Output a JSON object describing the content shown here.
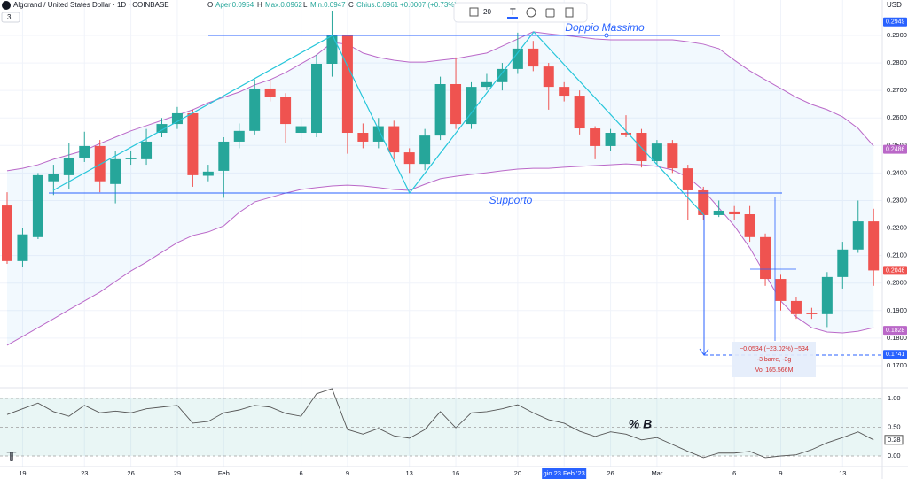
{
  "header": {
    "symbol": "Algorand / United States Dollar · 1D · COINBASE",
    "o": "O",
    "open": "Aper.0.0954",
    "h": "H",
    "high": "Max.0.0962",
    "l": "L",
    "low": "Min.0.0947",
    "c": "C",
    "close": "Chius.0.0961",
    "change": "+0.0007 (+0.73%)",
    "indicators": "3",
    "font_size": "20",
    "currency": "USD"
  },
  "chart_data": [
    {
      "type": "candlestick",
      "categories": [
        null,
        "19",
        null,
        null,
        null,
        "23",
        null,
        null,
        "26",
        null,
        null,
        "29",
        null,
        null,
        "Feb",
        null,
        null,
        null,
        null,
        "6",
        null,
        null,
        "9",
        null,
        null,
        null,
        "13",
        null,
        null,
        "16",
        null,
        null,
        null,
        "20",
        null,
        null,
        "gio 23 Feb '23",
        null,
        null,
        "26",
        null,
        null,
        "Mar",
        null,
        null,
        null,
        null,
        "6",
        null,
        null,
        "9",
        null,
        null,
        null,
        "13",
        null,
        null
      ],
      "open": [
        0.2282,
        0.208,
        0.2167,
        0.237,
        0.2392,
        0.2456,
        0.2498,
        0.236,
        0.245,
        0.245,
        0.2546,
        0.2578,
        0.2617,
        0.239,
        0.2408,
        0.2514,
        0.2553,
        0.2707,
        0.2675,
        0.2546,
        0.2546,
        0.2797,
        0.29,
        0.2546,
        0.2514,
        0.257,
        0.2475,
        0.2433,
        0.2536,
        0.2723,
        0.2578,
        0.2713,
        0.273,
        0.2778,
        0.2852,
        0.2787,
        0.2713,
        0.2681,
        0.2562,
        0.2498,
        0.2546,
        0.2546,
        0.2443,
        0.2507,
        0.2417,
        0.2337,
        0.2247,
        0.226,
        0.225,
        0.2167,
        0.2015,
        0.1935,
        0.189,
        0.1887,
        0.2022,
        0.2122,
        0.2224
      ],
      "high": [
        0.233,
        0.22,
        0.24,
        0.243,
        0.251,
        0.255,
        0.252,
        0.248,
        0.248,
        0.256,
        0.26,
        0.264,
        0.263,
        0.243,
        0.253,
        0.258,
        0.274,
        0.274,
        0.269,
        0.26,
        0.283,
        0.299,
        0.29,
        0.258,
        0.26,
        0.259,
        0.249,
        0.256,
        0.275,
        0.282,
        0.273,
        0.276,
        0.28,
        0.291,
        0.288,
        0.28,
        0.273,
        0.27,
        0.257,
        0.256,
        0.261,
        0.256,
        0.252,
        0.252,
        0.243,
        0.235,
        0.23,
        0.228,
        0.228,
        0.218,
        0.203,
        0.195,
        0.191,
        0.204,
        0.215,
        0.23,
        0.227
      ],
      "low": [
        0.207,
        0.206,
        0.216,
        0.232,
        0.234,
        0.244,
        0.233,
        0.229,
        0.243,
        0.243,
        0.253,
        0.256,
        0.235,
        0.237,
        0.231,
        0.249,
        0.254,
        0.266,
        0.251,
        0.252,
        0.253,
        0.275,
        0.247,
        0.249,
        0.249,
        0.245,
        0.24,
        0.241,
        0.252,
        0.256,
        0.256,
        0.27,
        0.27,
        0.276,
        0.277,
        0.263,
        0.266,
        0.254,
        0.245,
        0.248,
        0.253,
        0.242,
        0.243,
        0.24,
        0.223,
        0.223,
        0.224,
        0.223,
        0.215,
        0.199,
        0.19,
        0.187,
        0.187,
        0.184,
        0.198,
        0.211,
        0.199
      ],
      "close": [
        0.208,
        0.2177,
        0.2392,
        0.2395,
        0.2456,
        0.2498,
        0.237,
        0.245,
        0.2455,
        0.2514,
        0.2578,
        0.2617,
        0.2392,
        0.2405,
        0.2514,
        0.2553,
        0.2707,
        0.2675,
        0.2578,
        0.257,
        0.2797,
        0.29,
        0.2546,
        0.2514,
        0.257,
        0.2475,
        0.2433,
        0.2536,
        0.2723,
        0.2578,
        0.2713,
        0.273,
        0.2778,
        0.2852,
        0.2787,
        0.2713,
        0.2681,
        0.2562,
        0.2498,
        0.2546,
        0.254,
        0.2443,
        0.2507,
        0.2417,
        0.2337,
        0.2247,
        0.2263,
        0.225,
        0.2167,
        0.2015,
        0.1935,
        0.1887,
        0.1887,
        0.2022,
        0.2122,
        0.2224,
        0.2046
      ],
      "up_color": "#26a69a",
      "down_color": "#ef5350",
      "bands": {
        "color": "#ba68c8",
        "upper": [
          0.2408,
          0.2417,
          0.243,
          0.245,
          0.2466,
          0.2482,
          0.2507,
          0.253,
          0.2553,
          0.2572,
          0.2591,
          0.261,
          0.263,
          0.2655,
          0.2675,
          0.2694,
          0.272,
          0.2739,
          0.2765,
          0.2797,
          0.2829,
          0.2874,
          0.2868,
          0.2836,
          0.282,
          0.281,
          0.2803,
          0.2803,
          0.281,
          0.2816,
          0.2826,
          0.2836,
          0.2861,
          0.2887,
          0.2913,
          0.2906,
          0.29,
          0.2894,
          0.2887,
          0.2884,
          0.2884,
          0.2884,
          0.2884,
          0.2884,
          0.2877,
          0.2868,
          0.2852,
          0.281,
          0.2771,
          0.2739,
          0.2707,
          0.2675,
          0.2649,
          0.263,
          0.2604,
          0.2562,
          0.2498
        ],
        "lower": [
          0.1774,
          0.1806,
          0.1838,
          0.187,
          0.1903,
          0.1935,
          0.1967,
          0.2006,
          0.2044,
          0.2076,
          0.2112,
          0.2147,
          0.2173,
          0.2186,
          0.2208,
          0.2257,
          0.2295,
          0.2311,
          0.2327,
          0.234,
          0.2347,
          0.2353,
          0.2356,
          0.2353,
          0.2347,
          0.234,
          0.2337,
          0.2359,
          0.2379,
          0.2388,
          0.2395,
          0.2401,
          0.2408,
          0.2414,
          0.2417,
          0.2417,
          0.2421,
          0.2424,
          0.2427,
          0.243,
          0.2433,
          0.243,
          0.2424,
          0.2411,
          0.2385,
          0.2337,
          0.2273,
          0.2208,
          0.2128,
          0.2031,
          0.1935,
          0.1877,
          0.1838,
          0.1822,
          0.1819,
          0.1825,
          0.1838
        ]
      },
      "ylim": [
        0.165,
        0.3
      ],
      "yticks": [
        {
          "value": 0.29,
          "label": "0.2900"
        },
        {
          "value": 0.28,
          "label": "0.2800"
        },
        {
          "value": 0.27,
          "label": "0.2700"
        },
        {
          "value": 0.26,
          "label": "0.2600"
        },
        {
          "value": 0.25,
          "label": "0.2500"
        },
        {
          "value": 0.24,
          "label": "0.2400"
        },
        {
          "value": 0.23,
          "label": "0.2300"
        },
        {
          "value": 0.22,
          "label": "0.2200"
        },
        {
          "value": 0.21,
          "label": "0.2100"
        },
        {
          "value": 0.2,
          "label": "0.2000"
        },
        {
          "value": 0.19,
          "label": "0.1900"
        },
        {
          "value": 0.18,
          "label": "0.1800"
        },
        {
          "value": 0.17,
          "label": "0.1700"
        }
      ],
      "price_labels": [
        {
          "value": 0.2949,
          "color": "#2962ff"
        },
        {
          "value": 0.2486,
          "color": "#ba68c8"
        },
        {
          "value": 0.2046,
          "color": "#ef5350"
        },
        {
          "value": 0.1828,
          "color": "#ba68c8"
        },
        {
          "value": 0.1741,
          "color": "#2962ff"
        }
      ],
      "annotations": {
        "double_top": "Doppio Massimo",
        "support": "Supporto",
        "measure_change": "−0.0534 (−23.02%) −534",
        "measure_bars": "-3 barre, -3g",
        "measure_volume": "Vol 165.566M"
      }
    },
    {
      "type": "line",
      "title": "% B",
      "series": [
        {
          "name": "% B",
          "color": "#555555",
          "values": [
            0.72,
            0.82,
            0.92,
            0.77,
            0.69,
            0.88,
            0.75,
            0.78,
            0.75,
            0.82,
            0.85,
            0.88,
            0.57,
            0.6,
            0.75,
            0.8,
            0.88,
            0.85,
            0.74,
            0.69,
            1.08,
            1.17,
            0.46,
            0.38,
            0.48,
            0.35,
            0.31,
            0.46,
            0.77,
            0.49,
            0.75,
            0.77,
            0.82,
            0.89,
            0.75,
            0.63,
            0.57,
            0.43,
            0.34,
            0.42,
            0.38,
            0.28,
            0.32,
            0.2,
            0.08,
            -0.03,
            0.05,
            0.05,
            0.08,
            -0.03,
            0,
            0.02,
            0.11,
            0.23,
            0.32,
            0.42,
            0.28
          ]
        }
      ],
      "ylim": [
        -0.15,
        1.3
      ],
      "yticks": [
        {
          "value": 1,
          "label": "1.00"
        },
        {
          "value": 0.5,
          "label": "0.50"
        },
        {
          "value": 0,
          "label": "0.00"
        }
      ],
      "last_value": 0.28
    }
  ]
}
